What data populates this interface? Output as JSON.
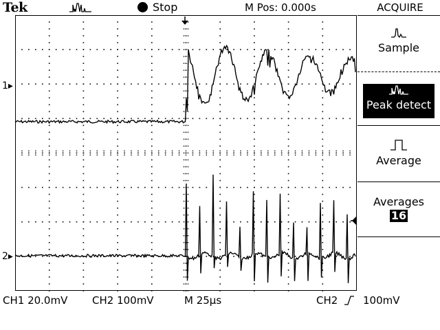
{
  "header": {
    "brand": "Tek",
    "acquire_mode_icon": "peak-detect-waveform-icon",
    "run_state": "Stop",
    "position_readout": "M Pos: 0.000s",
    "menu_title": "ACQUIRE"
  },
  "menu": {
    "items": [
      {
        "label": "Sample",
        "icon": "sample-waveform-icon",
        "selected": false
      },
      {
        "label": "Peak detect",
        "icon": "peak-detect-waveform-icon",
        "selected": true
      },
      {
        "label": "Average",
        "icon": "average-waveform-icon",
        "selected": false
      }
    ],
    "averages_label": "Averages",
    "averages_value": "16"
  },
  "channels": {
    "ch1_marker": "1",
    "ch2_marker": "2"
  },
  "status": {
    "ch1_scale": "CH1  20.0mV",
    "ch2_scale": "CH2  100mV",
    "timebase": "M 25µs",
    "trigger_source": "CH2",
    "trigger_slope_icon": "rising-edge-icon",
    "trigger_level": "100mV"
  },
  "colors": {
    "background": "#ffffff",
    "foreground": "#000000"
  }
}
